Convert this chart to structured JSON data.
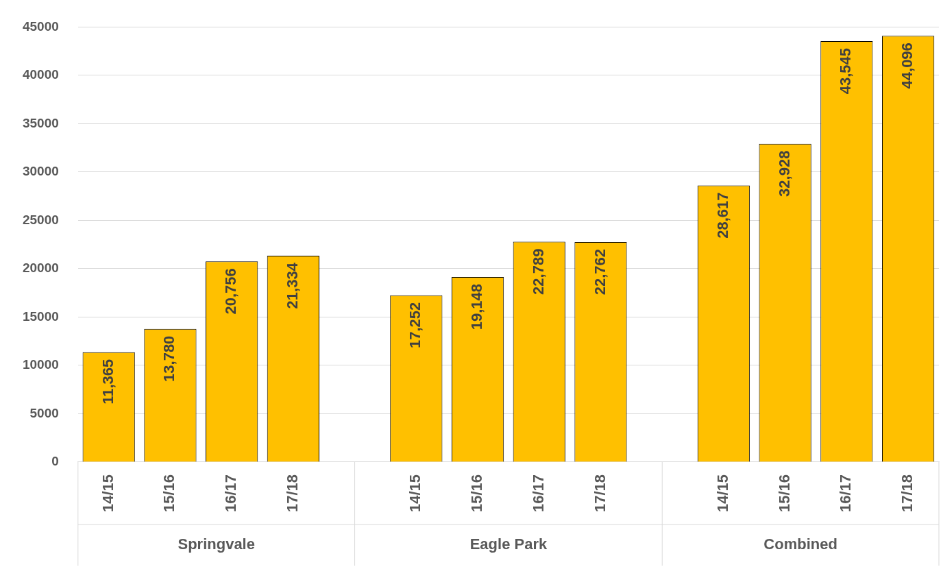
{
  "chart_data": {
    "type": "bar",
    "categories": [
      "14/15",
      "15/16",
      "16/17",
      "17/18",
      null,
      "14/15",
      "15/16",
      "16/17",
      "17/18",
      null,
      "14/15",
      "15/16",
      "16/17",
      "17/18"
    ],
    "values": [
      11365,
      13780,
      20756,
      21334,
      null,
      17252,
      19148,
      22789,
      22762,
      null,
      28617,
      32928,
      43545,
      44096
    ],
    "value_labels": [
      "11,365",
      "13,780",
      "20,756",
      "21,334",
      null,
      "17,252",
      "19,148",
      "22,789",
      "22,762",
      null,
      "28,617",
      "32,928",
      "43,545",
      "44,096"
    ],
    "color": "#ffc000",
    "ylim": [
      0,
      45000
    ],
    "yticks": [
      0,
      5000,
      10000,
      15000,
      20000,
      25000,
      30000,
      35000,
      40000,
      45000
    ],
    "grid": "y",
    "annotations": [
      "Springvale",
      "Eagle Park",
      "Combined"
    ]
  }
}
